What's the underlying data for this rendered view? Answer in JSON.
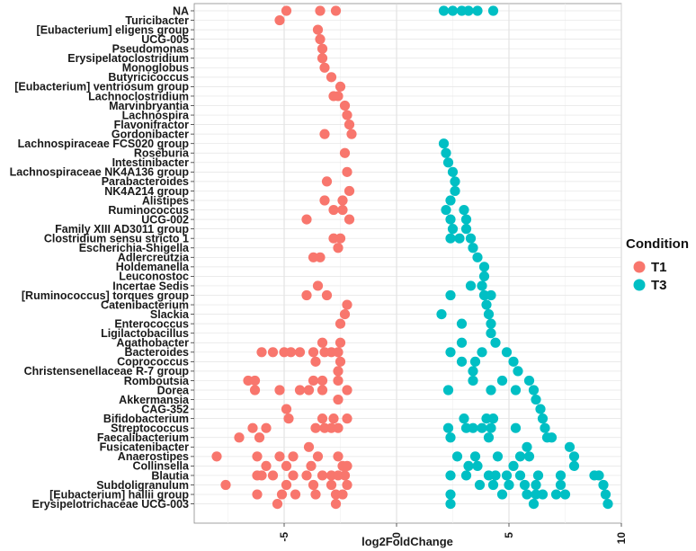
{
  "chart_data": {
    "type": "scatter",
    "title": "",
    "xlabel": "log2FoldChange",
    "ylabel": "",
    "xlim": [
      -9,
      10
    ],
    "xticks": [
      -5,
      0,
      5,
      10
    ],
    "grid": true,
    "legend": {
      "title": "Condition",
      "position": "right",
      "entries": [
        "T1",
        "T3"
      ]
    },
    "colors": {
      "T1": "#F8766D",
      "T3": "#00BFC4"
    },
    "categories": [
      "NA",
      "Turicibacter",
      "[Eubacterium] eligens group",
      "UCG-005",
      "Pseudomonas",
      "Erysipelatoclostridium",
      "Monoglobus",
      "Butyricicoccus",
      "[Eubacterium] ventriosum group",
      "Lachnoclostridium",
      "Marvinbryantia",
      "Lachnospira",
      "Flavonifractor",
      "Gordonibacter",
      "Lachnospiraceae FCS020 group",
      "Roseburia",
      "Intestinibacter",
      "Lachnospiraceae NK4A136 group",
      "Parabacteroides",
      "NK4A214 group",
      "Alistipes",
      "Ruminococcus",
      "UCG-002",
      "Family XIII AD3011 group",
      "Clostridium sensu stricto 1",
      "Escherichia-Shigella",
      "Adlercreutzia",
      "Holdemanella",
      "Leuconostoc",
      "Incertae Sedis",
      "[Ruminococcus] torques group",
      "Catenibacterium",
      "Slackia",
      "Enterococcus",
      "Ligilactobacillus",
      "Agathobacter",
      "Bacteroides",
      "Coprococcus",
      "Christensenellaceae R-7 group",
      "Romboutsia",
      "Dorea",
      "Akkermansia",
      "CAG-352",
      "Bifidobacterium",
      "Streptococcus",
      "Faecalibacterium",
      "Fusicatenibacter",
      "Anaerostipes",
      "Collinsella",
      "Blautia",
      "Subdoligranulum",
      "[Eubacterium] hallii group",
      "Erysipelotrichaceae UCG-003"
    ],
    "series": [
      {
        "name": "T1",
        "values": [
          [
            -4.9,
            -3.4,
            -2.7
          ],
          [
            -5.2
          ],
          [
            -3.5
          ],
          [
            -3.4
          ],
          [
            -3.3
          ],
          [
            -3.3
          ],
          [
            -3.2
          ],
          [
            -2.9
          ],
          [
            -2.5
          ],
          [
            -2.6,
            -2.8
          ],
          [
            -2.3
          ],
          [
            -2.2
          ],
          [
            -2.1
          ],
          [
            -3.2,
            -2.0
          ],
          [],
          [
            -2.3
          ],
          [],
          [
            -2.2
          ],
          [
            -3.1
          ],
          [
            -2.1
          ],
          [
            -3.2,
            -2.4
          ],
          [
            -2.8,
            -2.4
          ],
          [
            -4.0,
            -2.1
          ],
          [],
          [
            -2.8,
            -2.5
          ],
          [
            -2.6
          ],
          [
            -3.7,
            -3.4
          ],
          [],
          [],
          [
            -3.5
          ],
          [
            -4.0,
            -3.1
          ],
          [
            -2.2
          ],
          [
            -2.3
          ],
          [
            -2.5
          ],
          [],
          [
            -3.3,
            -2.5
          ],
          [
            -6.0,
            -5.5,
            -5.0,
            -4.7,
            -4.3,
            -3.7,
            -3.2,
            -2.9,
            -2.6
          ],
          [
            -3.6,
            -2.5
          ],
          [
            -2.6
          ],
          [
            -6.6,
            -6.3,
            -3.7,
            -3.3,
            -2.6
          ],
          [
            -6.3,
            -5.2,
            -4.3,
            -3.9,
            -3.3,
            -2.2
          ],
          [
            -2.6
          ],
          [
            -4.9
          ],
          [
            -4.8,
            -3.3,
            -2.8,
            -2.2
          ],
          [
            -6.4,
            -5.8,
            -3.6,
            -3.2,
            -2.9,
            -2.6
          ],
          [
            -7.0,
            -6.1
          ],
          [
            -3.9
          ],
          [
            -8.0,
            -6.2,
            -5.2,
            -4.6,
            -3.5,
            -2.6
          ],
          [
            -5.8,
            -4.9,
            -3.8,
            -2.4,
            -2.2
          ],
          [
            -6.2,
            -6.0,
            -5.5,
            -4.6,
            -4.0,
            -3.3,
            -2.9,
            -2.6,
            -2.3
          ],
          [
            -7.6,
            -4.9,
            -3.7,
            -2.9,
            -2.2
          ],
          [
            -6.2,
            -5.1,
            -4.5,
            -3.6,
            -2.7,
            -2.4
          ],
          [
            -5.3,
            -2.7
          ]
        ]
      },
      {
        "name": "T3",
        "values": [
          [
            2.1,
            2.5,
            2.9,
            3.2,
            3.6,
            4.3
          ],
          [],
          [],
          [],
          [],
          [],
          [],
          [],
          [],
          [],
          [],
          [],
          [],
          [],
          [
            2.1
          ],
          [
            2.2
          ],
          [
            2.3
          ],
          [
            2.5
          ],
          [
            2.6
          ],
          [
            2.6
          ],
          [
            2.4
          ],
          [
            2.2,
            3.0
          ],
          [
            2.4,
            3.1
          ],
          [
            2.5,
            3.1
          ],
          [
            2.4,
            2.8,
            3.3
          ],
          [
            3.4
          ],
          [
            3.6
          ],
          [
            3.9
          ],
          [
            3.9
          ],
          [
            3.3,
            3.8
          ],
          [
            2.4,
            3.9,
            4.2
          ],
          [
            4.0
          ],
          [
            2.0,
            4.1
          ],
          [
            2.9,
            4.2
          ],
          [
            4.2
          ],
          [
            2.9,
            4.4
          ],
          [
            2.4,
            3.8,
            4.9
          ],
          [
            2.9,
            3.5,
            5.2
          ],
          [
            3.4,
            5.4
          ],
          [
            3.4,
            4.7,
            5.9
          ],
          [
            2.3,
            4.2,
            5.3,
            6.1
          ],
          [
            6.2
          ],
          [
            6.4
          ],
          [
            3.0,
            4.0,
            4.3,
            6.5
          ],
          [
            2.3,
            3.1,
            3.4,
            3.8,
            4.2,
            5.3,
            6.6
          ],
          [
            2.4,
            4.1,
            6.7,
            6.9
          ],
          [
            5.8,
            7.7
          ],
          [
            2.7,
            3.5,
            4.5,
            5.5,
            5.9,
            7.9
          ],
          [
            3.2,
            3.6,
            5.2,
            7.9
          ],
          [
            2.4,
            3.1,
            4.1,
            4.4,
            4.9,
            5.5,
            6.3,
            7.3,
            8.8,
            9.0
          ],
          [
            3.7,
            4.3,
            5.0,
            5.7,
            6.2,
            7.3,
            9.2
          ],
          [
            2.4,
            4.7,
            5.8,
            6.2,
            6.5,
            7.1,
            7.5,
            9.3
          ],
          [
            2.4,
            6.1,
            9.4
          ]
        ]
      }
    ]
  }
}
